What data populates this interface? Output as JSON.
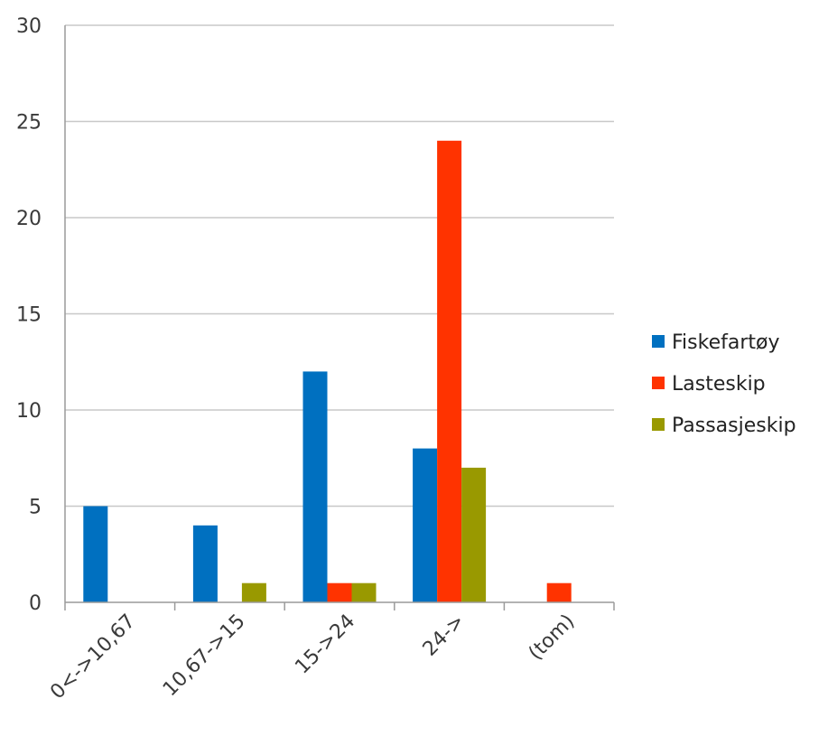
{
  "chart_data": {
    "type": "bar",
    "title": "",
    "xlabel": "",
    "ylabel": "",
    "ylim": [
      0,
      30
    ],
    "yticks": [
      0,
      5,
      10,
      15,
      20,
      25,
      30
    ],
    "grid": true,
    "legend_position": "right",
    "categories": [
      "0<->10,67",
      "10,67->15",
      "15->24",
      "24->",
      "(tom)"
    ],
    "series": [
      {
        "name": "Fiskefartøy",
        "color": "#0070C0",
        "values": [
          5,
          4,
          12,
          8,
          0
        ]
      },
      {
        "name": "Lasteskip",
        "color": "#FF3300",
        "values": [
          0,
          0,
          1,
          24,
          1
        ]
      },
      {
        "name": "Passasjeskip",
        "color": "#999900",
        "values": [
          0,
          1,
          1,
          7,
          0
        ]
      }
    ]
  }
}
